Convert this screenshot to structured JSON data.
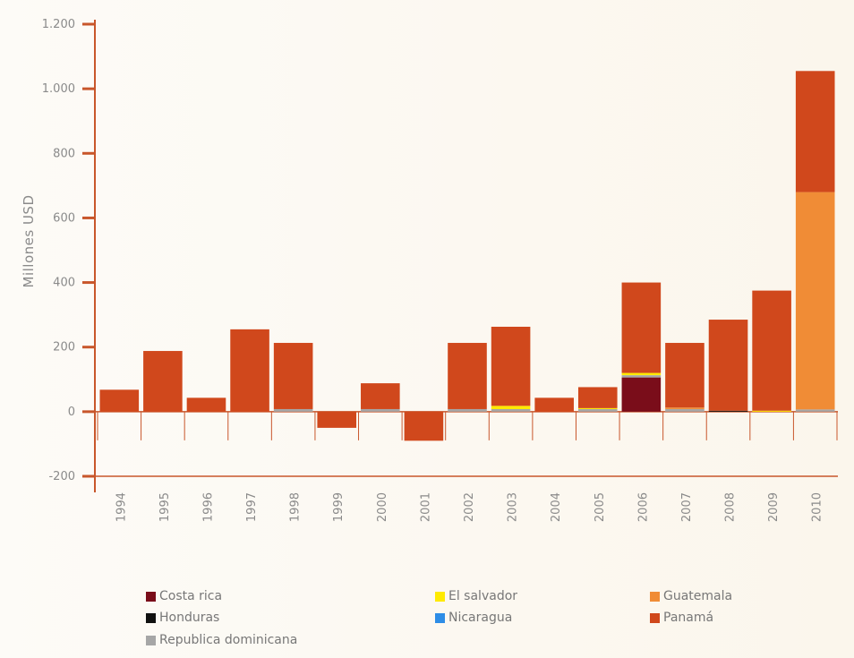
{
  "chart_data": {
    "type": "bar",
    "stacked": true,
    "ylabel": "Millones USD",
    "ylim": [
      -200,
      1200
    ],
    "yticks": [
      -200,
      0,
      200,
      400,
      600,
      800,
      1000,
      1200
    ],
    "ytick_labels": [
      "-200",
      "0",
      "200",
      "400",
      "600",
      "800",
      "1.000",
      "1.200"
    ],
    "categories": [
      "1994",
      "1995",
      "1996",
      "1997",
      "1998",
      "1999",
      "2000",
      "2001",
      "2002",
      "2003",
      "2004",
      "2005",
      "2006",
      "2007",
      "2008",
      "2009",
      "2010"
    ],
    "series": [
      {
        "name": "Costa rica",
        "color": "#7a0d1a",
        "values": [
          0,
          0,
          0,
          0,
          0,
          0,
          0,
          0,
          0,
          0,
          0,
          0,
          106,
          0,
          0,
          0,
          0
        ]
      },
      {
        "name": "Honduras",
        "color": "#111111",
        "values": [
          0,
          0,
          0,
          0,
          0,
          0,
          0,
          0,
          0,
          0,
          0,
          0,
          0,
          0,
          3,
          0,
          0
        ]
      },
      {
        "name": "Republica dominicana",
        "color": "#a6a6a6",
        "values": [
          0,
          0,
          0,
          0,
          8,
          0,
          8,
          0,
          8,
          8,
          0,
          8,
          7,
          8,
          0,
          0,
          7
        ]
      },
      {
        "name": "El salvador",
        "color": "#ffea00",
        "values": [
          0,
          0,
          0,
          0,
          0,
          0,
          0,
          0,
          0,
          10,
          0,
          3,
          7,
          0,
          0,
          3,
          0
        ]
      },
      {
        "name": "Nicaragua",
        "color": "#2e8de6",
        "values": [
          0,
          0,
          0,
          0,
          0,
          0,
          0,
          0,
          0,
          0,
          0,
          0,
          0,
          0,
          0,
          0,
          0
        ]
      },
      {
        "name": "Guatemala",
        "color": "#f08c36",
        "values": [
          0,
          0,
          0,
          0,
          0,
          0,
          0,
          0,
          0,
          0,
          0,
          0,
          0,
          5,
          0,
          0,
          673
        ]
      },
      {
        "name": "Panamá",
        "color": "#d0481c",
        "values": [
          68,
          188,
          43,
          255,
          205,
          -50,
          80,
          -90,
          205,
          245,
          43,
          65,
          280,
          200,
          282,
          372,
          375
        ]
      }
    ],
    "legend_rows": [
      [
        "Costa rica",
        "El salvador",
        "Guatemala"
      ],
      [
        "Honduras",
        "Nicaragua",
        "Panamá"
      ],
      [
        "Republica dominicana"
      ]
    ],
    "legend_position": "bottom",
    "grid": false
  },
  "colors": {
    "axis": "#c8562b",
    "tick_text": "#8a8a8a"
  }
}
